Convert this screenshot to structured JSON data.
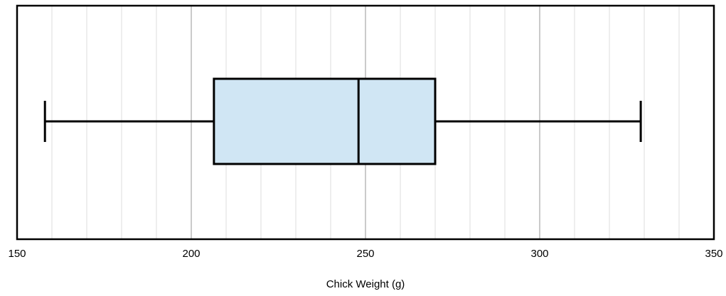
{
  "chart_data": {
    "type": "boxplot",
    "title": "",
    "xlabel": "Chick Weight (g)",
    "ylabel": "",
    "orientation": "horizontal",
    "xlim": [
      150,
      350
    ],
    "x_ticks": [
      150,
      200,
      250,
      300,
      350
    ],
    "x_minor_step": 10,
    "grid": true,
    "box": {
      "whisker_low": 158,
      "q1": 206.5,
      "median": 248,
      "q3": 270,
      "whisker_high": 329
    },
    "colors": {
      "box_fill": "#d0e6f4",
      "stroke": "#000000",
      "major_grid": "#a8a8a8",
      "minor_grid": "#dcdcdc"
    }
  }
}
